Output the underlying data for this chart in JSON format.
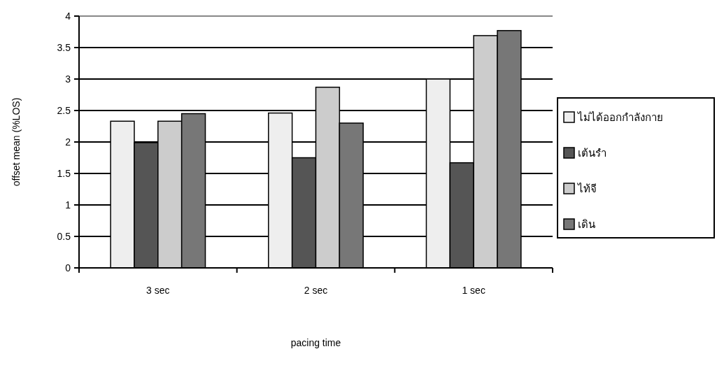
{
  "chart_data": {
    "type": "bar",
    "xlabel": "pacing time",
    "ylabel": "offset mean (%LOS)",
    "categories": [
      "3 sec",
      "2 sec",
      "1 sec"
    ],
    "series": [
      {
        "name": "ไม่ได้ออกกำลังกาย",
        "color": "#eeeeee",
        "values": [
          2.33,
          2.46,
          3.0
        ]
      },
      {
        "name": "เต้นรำ",
        "color": "#555555",
        "values": [
          1.99,
          1.75,
          1.67
        ]
      },
      {
        "name": "ไท้จี",
        "color": "#cccccc",
        "values": [
          2.33,
          2.87,
          3.69
        ]
      },
      {
        "name": "เดิน",
        "color": "#777777",
        "values": [
          2.45,
          2.3,
          3.77
        ]
      }
    ],
    "ylim": [
      0,
      4
    ],
    "yticks": [
      0,
      0.5,
      1,
      1.5,
      2,
      2.5,
      3,
      3.5,
      4
    ],
    "grid": "y",
    "legend": "right"
  }
}
